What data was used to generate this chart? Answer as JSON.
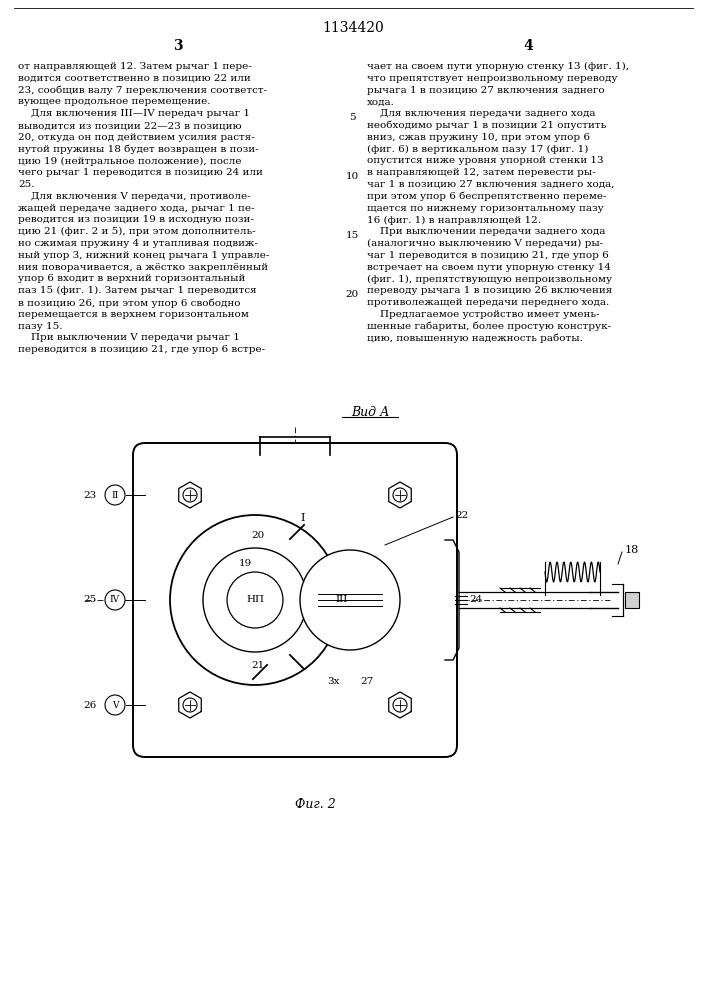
{
  "patent_number": "1134420",
  "col_left_number": "3",
  "col_right_number": "4",
  "text_col_left": [
    "от направляющей 12. Затем рычаг 1 пере-",
    "водится соответственно в позицию 22 или",
    "23, сообщив валу 7 переключения соответст-",
    "вующее продольное перемещение.",
    "    Для включения III—IV передач рычаг 1",
    "выводится из позиции 22—23 в позицию",
    "20, откуда он под действием усилия растя-",
    "нутой пружины 18 будет возвращен в пози-",
    "цию 19 (нейтральное положение), после",
    "чего рычаг 1 переводится в позицию 24 или",
    "25.",
    "    Для включения V передачи, противоле-",
    "жащей передаче заднего хода, рычаг 1 пе-",
    "реводится из позиции 19 в исходную пози-",
    "цию 21 (фиг. 2 и 5), при этом дополнитель-",
    "но сжимая пружину 4 и утапливая подвиж-",
    "ный упор 3, нижний конец рычага 1 управле-",
    "ния поворачивается, а жёстко закреплённый",
    "упор 6 входит в верхний горизонтальный",
    "паз 15 (фиг. 1). Затем рычаг 1 переводится",
    "в позицию 26, при этом упор 6 свободно",
    "перемещается в верхнем горизонтальном",
    "пазу 15.",
    "    При выключении V передачи рычаг 1",
    "переводится в позицию 21, где упор 6 встре-"
  ],
  "text_col_right": [
    "чает на своем пути упорную стенку 13 (фиг. 1),",
    "что препятствует непроизвольному переводу",
    "рычага 1 в позицию 27 включения заднего",
    "хода.",
    "    Для включения передачи заднего хода",
    "необходимо рычаг 1 в позиции 21 опустить",
    "вниз, сжав пружину 10, при этом упор 6",
    "(фиг. 6) в вертикальном пазу 17 (фиг. 1)",
    "опустится ниже уровня упорной стенки 13",
    "в направляющей 12, затем перевести ры-",
    "чаг 1 в позицию 27 включения заднего хода,",
    "при этом упор 6 беспрепятственно переме-",
    "щается по нижнему горизонтальному пазу",
    "16 (фиг. 1) в направляющей 12.",
    "    При выключении передачи заднего хода",
    "(аналогично выключению V передачи) ры-",
    "чаг 1 переводится в позицию 21, где упор 6",
    "встречает на своем пути упорную стенку 14",
    "(фиг. 1), препятствующую непроизвольному",
    "переводу рычага 1 в позицию 26 включения",
    "противолежащей передачи переднего хода.",
    "    Предлагаемое устройство имеет умень-",
    "шенные габариты, более простую конструк-",
    "цию, повышенную надежность работы."
  ],
  "line_numbers": [
    5,
    10,
    15,
    20
  ],
  "line_number_rows": [
    5,
    10,
    15,
    20
  ],
  "fig_label": "Вид А",
  "fig_number": "Фиг. 2",
  "bg_color": "#ffffff",
  "text_color": "#000000",
  "line_color": "#000000"
}
